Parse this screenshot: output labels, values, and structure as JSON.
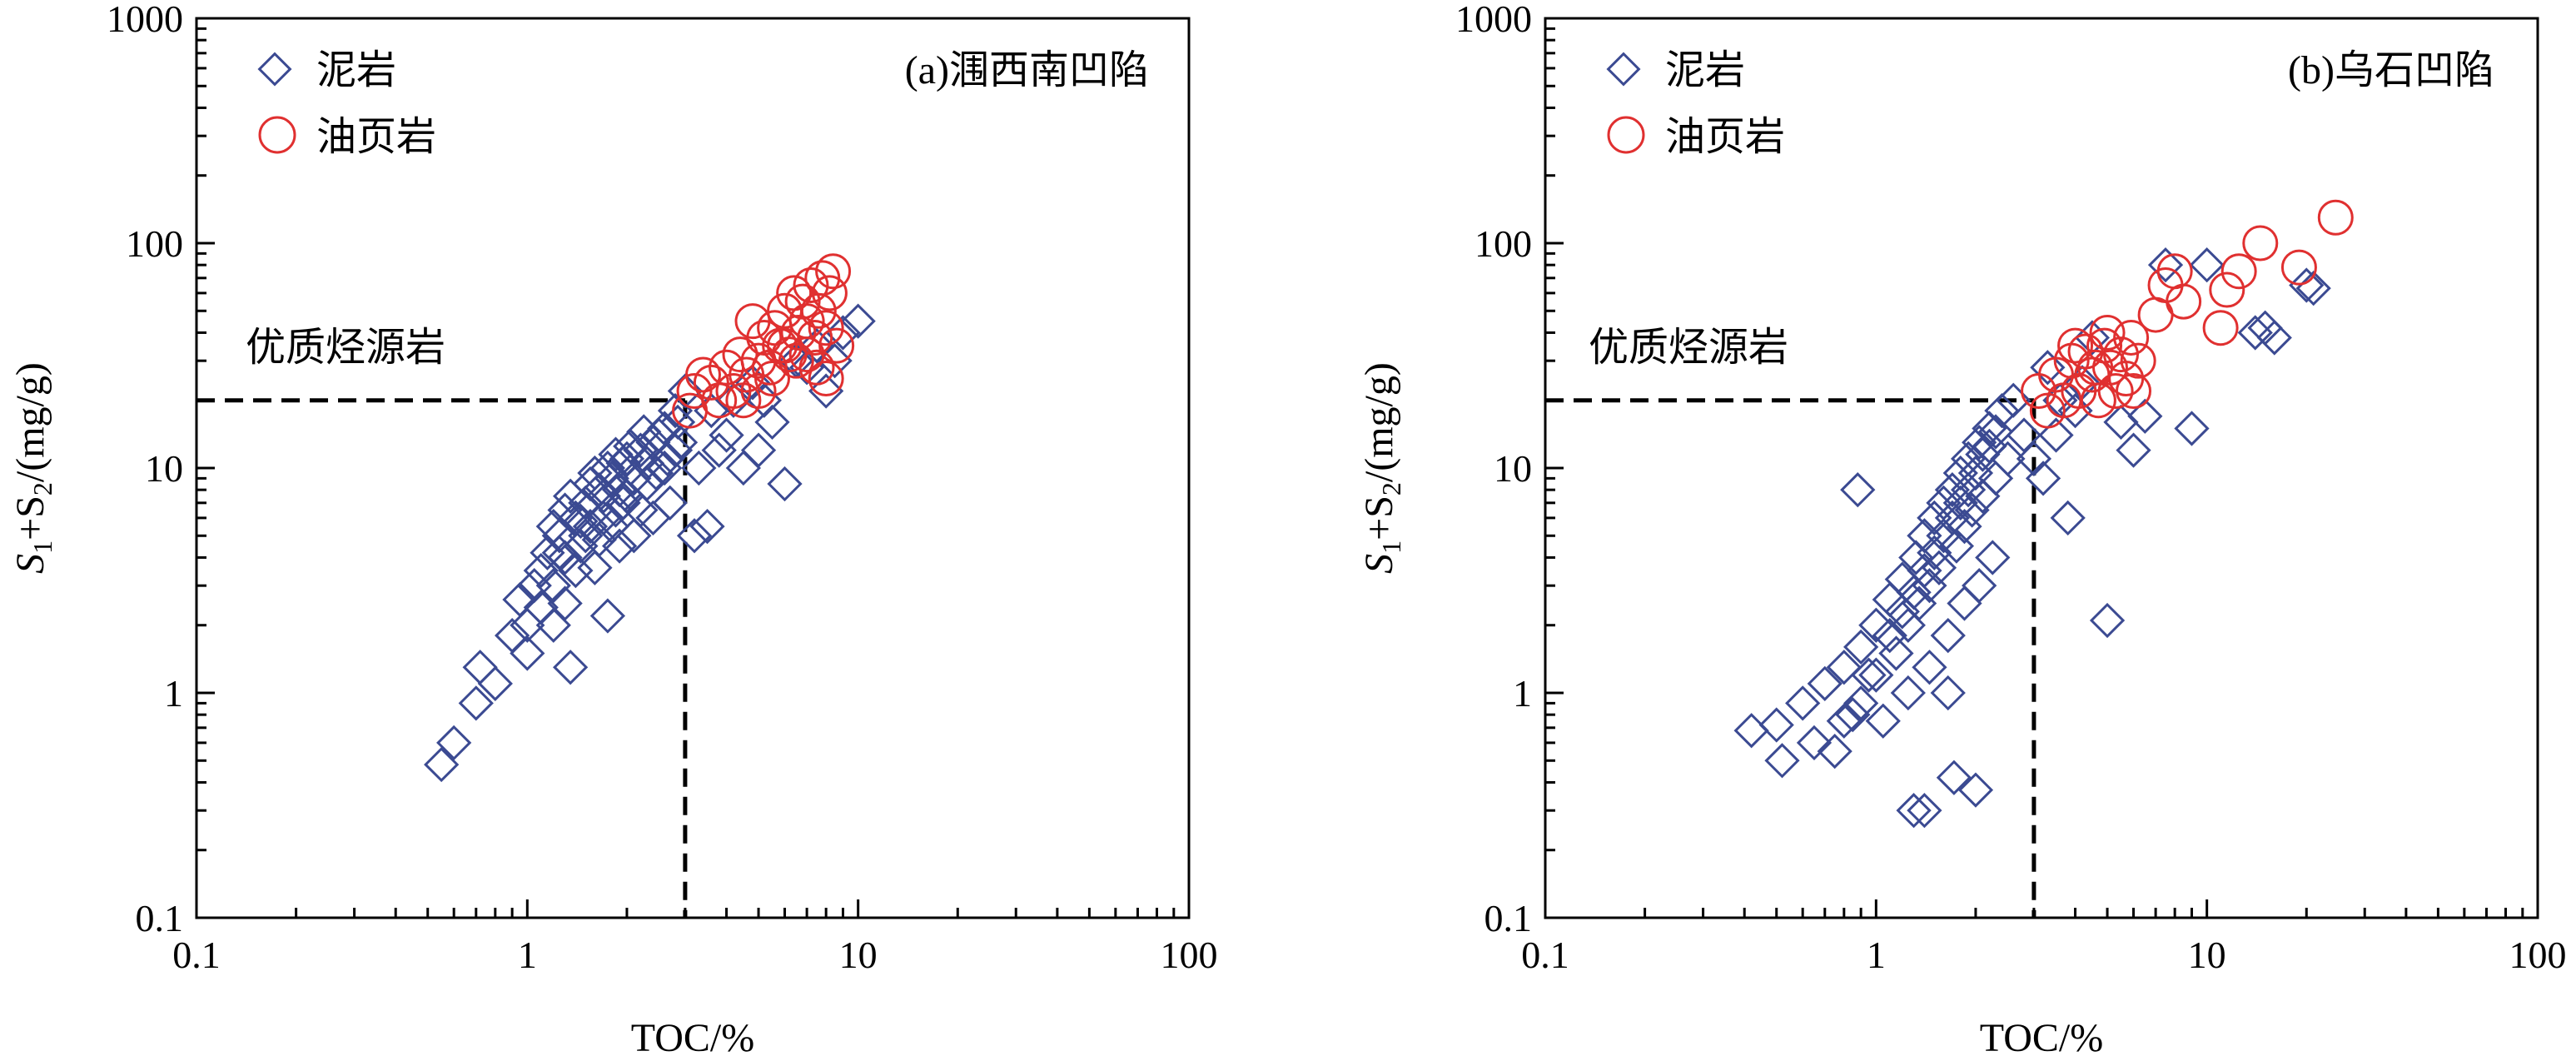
{
  "chart_data": [
    {
      "type": "scatter",
      "panel_label": "(a)涠西南凹陷",
      "xlabel": "TOC/%",
      "ylabel_parts": [
        "S",
        "1",
        "+S",
        "2",
        "/(mg/g)"
      ],
      "x_scale": "log",
      "y_scale": "log",
      "xlim": [
        0.1,
        100
      ],
      "ylim": [
        0.1,
        1000
      ],
      "x_ticks": [
        "0.1",
        "1",
        "10",
        "100"
      ],
      "y_ticks": [
        "0.1",
        "1",
        "10",
        "100",
        "1000"
      ],
      "grid": false,
      "legend_position": "top-left",
      "annotation": "优质烃源岩",
      "threshold": {
        "x": 3,
        "y": 20
      },
      "series": [
        {
          "name": "泥岩",
          "marker": "diamond",
          "color": "#3b4a92",
          "points": [
            [
              0.55,
              0.48
            ],
            [
              0.6,
              0.6
            ],
            [
              0.7,
              0.9
            ],
            [
              0.72,
              1.3
            ],
            [
              0.8,
              1.1
            ],
            [
              0.9,
              1.8
            ],
            [
              0.95,
              2.6
            ],
            [
              1.0,
              1.5
            ],
            [
              1.05,
              3.0
            ],
            [
              1.1,
              2.4
            ],
            [
              1.15,
              4.2
            ],
            [
              1.2,
              3.0
            ],
            [
              1.25,
              5.0
            ],
            [
              1.3,
              4.0
            ],
            [
              1.35,
              1.3
            ],
            [
              1.4,
              6.0
            ],
            [
              1.45,
              4.5
            ],
            [
              1.5,
              7.0
            ],
            [
              1.55,
              5.5
            ],
            [
              1.6,
              3.6
            ],
            [
              1.65,
              8.0
            ],
            [
              1.7,
              6.0
            ],
            [
              1.75,
              2.2
            ],
            [
              1.8,
              9.0
            ],
            [
              1.85,
              6.5
            ],
            [
              1.9,
              4.5
            ],
            [
              1.95,
              10.5
            ],
            [
              2.0,
              7.5
            ],
            [
              2.1,
              5.0
            ],
            [
              2.2,
              12.0
            ],
            [
              2.3,
              8.5
            ],
            [
              2.4,
              6.0
            ],
            [
              2.5,
              14.0
            ],
            [
              2.6,
              10.0
            ],
            [
              2.7,
              7.0
            ],
            [
              2.8,
              18.0
            ],
            [
              2.9,
              13.0
            ],
            [
              3.0,
              22.0
            ],
            [
              1.2,
              5.5
            ],
            [
              1.3,
              6.5
            ],
            [
              1.4,
              3.5
            ],
            [
              1.5,
              5.0
            ],
            [
              1.6,
              9.5
            ],
            [
              1.7,
              7.5
            ],
            [
              1.8,
              5.5
            ],
            [
              1.9,
              8.0
            ],
            [
              2.0,
              11.0
            ],
            [
              2.1,
              9.0
            ],
            [
              2.2,
              6.5
            ],
            [
              2.3,
              10.5
            ],
            [
              2.4,
              13.0
            ],
            [
              2.6,
              15.0
            ],
            [
              2.8,
              12.0
            ],
            [
              1.1,
              3.5
            ],
            [
              1.25,
              4.2
            ],
            [
              1.35,
              7.5
            ],
            [
              1.45,
              5.8
            ],
            [
              1.55,
              8.5
            ],
            [
              1.65,
              4.8
            ],
            [
              1.75,
              10.0
            ],
            [
              1.85,
              11.5
            ],
            [
              1.95,
              7.0
            ],
            [
              2.05,
              12.5
            ],
            [
              2.25,
              14.5
            ],
            [
              2.45,
              9.5
            ],
            [
              2.65,
              11.0
            ],
            [
              2.85,
              16.0
            ],
            [
              1.3,
              2.5
            ],
            [
              1.2,
              2.0
            ],
            [
              1.0,
              2.0
            ],
            [
              3.2,
              5.0
            ],
            [
              3.5,
              5.5
            ],
            [
              3.3,
              10.0
            ],
            [
              3.8,
              12.0
            ],
            [
              4.0,
              14.0
            ],
            [
              4.5,
              10.0
            ],
            [
              5.0,
              12.0
            ],
            [
              5.5,
              16.0
            ],
            [
              6.0,
              8.5
            ],
            [
              6.5,
              30.0
            ],
            [
              7.0,
              28.0
            ],
            [
              7.5,
              35.0
            ],
            [
              8.0,
              22.0
            ],
            [
              8.5,
              30.0
            ],
            [
              9.0,
              40.0
            ],
            [
              10.0,
              45.0
            ],
            [
              3.6,
              18.0
            ],
            [
              4.2,
              20.0
            ],
            [
              4.8,
              24.0
            ],
            [
              5.2,
              20.0
            ]
          ]
        },
        {
          "name": "油页岩",
          "marker": "circle",
          "color": "#e03030",
          "points": [
            [
              3.1,
              18.0
            ],
            [
              3.2,
              22.0
            ],
            [
              3.4,
              26.0
            ],
            [
              3.6,
              24.0
            ],
            [
              3.8,
              20.0
            ],
            [
              4.0,
              28.0
            ],
            [
              4.2,
              22.0
            ],
            [
              4.4,
              32.0
            ],
            [
              4.6,
              26.0
            ],
            [
              4.8,
              45.0
            ],
            [
              5.0,
              30.0
            ],
            [
              5.2,
              38.0
            ],
            [
              5.4,
              28.0
            ],
            [
              5.6,
              42.0
            ],
            [
              5.8,
              35.0
            ],
            [
              6.0,
              50.0
            ],
            [
              6.2,
              32.0
            ],
            [
              6.4,
              60.0
            ],
            [
              6.6,
              40.0
            ],
            [
              6.8,
              55.0
            ],
            [
              7.0,
              45.0
            ],
            [
              7.2,
              65.0
            ],
            [
              7.4,
              38.0
            ],
            [
              7.6,
              50.0
            ],
            [
              7.8,
              70.0
            ],
            [
              8.0,
              42.0
            ],
            [
              8.2,
              60.0
            ],
            [
              8.4,
              75.0
            ],
            [
              8.6,
              35.0
            ],
            [
              5.5,
              25.0
            ],
            [
              6.5,
              30.0
            ],
            [
              7.5,
              28.0
            ],
            [
              4.5,
              20.0
            ],
            [
              5.0,
              22.0
            ],
            [
              6.0,
              35.0
            ],
            [
              7.0,
              32.0
            ],
            [
              8.0,
              25.0
            ]
          ]
        }
      ]
    },
    {
      "type": "scatter",
      "panel_label": "(b)乌石凹陷",
      "xlabel": "TOC/%",
      "ylabel_parts": [
        "S",
        "1",
        "+S",
        "2",
        "/(mg/g)"
      ],
      "x_scale": "log",
      "y_scale": "log",
      "xlim": [
        0.1,
        100
      ],
      "ylim": [
        0.1,
        1000
      ],
      "x_ticks": [
        "0.1",
        "1",
        "10",
        "100"
      ],
      "y_ticks": [
        "0.1",
        "1",
        "10",
        "100",
        "1000"
      ],
      "grid": false,
      "legend_position": "top-left",
      "annotation": "优质烃源岩",
      "threshold": {
        "x": 3,
        "y": 20
      },
      "series": [
        {
          "name": "泥岩",
          "marker": "diamond",
          "color": "#3b4a92",
          "points": [
            [
              0.42,
              0.68
            ],
            [
              0.5,
              0.72
            ],
            [
              0.52,
              0.5
            ],
            [
              0.6,
              0.9
            ],
            [
              0.65,
              0.6
            ],
            [
              0.7,
              1.1
            ],
            [
              0.75,
              0.55
            ],
            [
              0.8,
              1.3
            ],
            [
              0.85,
              0.8
            ],
            [
              0.9,
              1.6
            ],
            [
              0.88,
              8.0
            ],
            [
              0.95,
              1.2
            ],
            [
              1.0,
              2.0
            ],
            [
              1.05,
              0.75
            ],
            [
              1.1,
              2.6
            ],
            [
              1.15,
              1.5
            ],
            [
              1.2,
              3.2
            ],
            [
              1.25,
              2.0
            ],
            [
              1.3,
              0.3
            ],
            [
              1.32,
              4.0
            ],
            [
              1.35,
              2.5
            ],
            [
              1.4,
              5.0
            ],
            [
              1.45,
              3.0
            ],
            [
              1.5,
              6.0
            ],
            [
              1.55,
              3.6
            ],
            [
              1.6,
              7.0
            ],
            [
              1.65,
              1.0
            ],
            [
              1.7,
              8.0
            ],
            [
              1.72,
              0.42
            ],
            [
              1.75,
              4.5
            ],
            [
              1.8,
              9.5
            ],
            [
              1.85,
              5.5
            ],
            [
              1.9,
              11.0
            ],
            [
              1.95,
              6.5
            ],
            [
              2.0,
              0.37
            ],
            [
              2.05,
              13.0
            ],
            [
              2.1,
              7.5
            ],
            [
              2.2,
              15.0
            ],
            [
              2.3,
              9.0
            ],
            [
              2.4,
              18.0
            ],
            [
              2.5,
              11.0
            ],
            [
              2.6,
              20.0
            ],
            [
              2.8,
              14.0
            ],
            [
              1.0,
              1.2
            ],
            [
              1.1,
              1.8
            ],
            [
              1.2,
              2.3
            ],
            [
              1.3,
              2.8
            ],
            [
              1.4,
              3.5
            ],
            [
              1.5,
              4.2
            ],
            [
              1.6,
              5.0
            ],
            [
              1.7,
              6.0
            ],
            [
              1.8,
              7.0
            ],
            [
              1.9,
              8.0
            ],
            [
              2.0,
              9.5
            ],
            [
              2.1,
              11.5
            ],
            [
              2.2,
              12.5
            ],
            [
              2.3,
              14.5
            ],
            [
              1.25,
              1.0
            ],
            [
              1.45,
              1.3
            ],
            [
              1.65,
              1.8
            ],
            [
              1.85,
              2.5
            ],
            [
              2.05,
              3.0
            ],
            [
              2.25,
              4.0
            ],
            [
              0.9,
              0.9
            ],
            [
              0.8,
              0.75
            ],
            [
              1.4,
              0.3
            ],
            [
              3.0,
              11.0
            ],
            [
              3.2,
              9.0
            ],
            [
              3.5,
              14.0
            ],
            [
              3.8,
              6.0
            ],
            [
              4.0,
              18.0
            ],
            [
              4.5,
              38.0
            ],
            [
              5.0,
              2.1
            ],
            [
              5.5,
              16.0
            ],
            [
              6.0,
              12.0
            ],
            [
              6.5,
              17.0
            ],
            [
              7.5,
              80.0
            ],
            [
              9.0,
              15.0
            ],
            [
              10.0,
              80.0
            ],
            [
              14.0,
              40.0
            ],
            [
              15.0,
              42.0
            ],
            [
              16.0,
              38.0
            ],
            [
              20.0,
              65.0
            ],
            [
              21.0,
              63.0
            ],
            [
              3.3,
              28.0
            ],
            [
              3.6,
              20.0
            ],
            [
              4.2,
              24.0
            ]
          ]
        },
        {
          "name": "油页岩",
          "marker": "circle",
          "color": "#e03030",
          "points": [
            [
              3.1,
              22.0
            ],
            [
              3.3,
              18.0
            ],
            [
              3.5,
              26.0
            ],
            [
              3.7,
              20.0
            ],
            [
              3.9,
              30.0
            ],
            [
              4.1,
              22.0
            ],
            [
              4.3,
              33.0
            ],
            [
              4.5,
              26.0
            ],
            [
              4.7,
              20.0
            ],
            [
              4.9,
              35.0
            ],
            [
              5.1,
              28.0
            ],
            [
              5.3,
              22.0
            ],
            [
              5.5,
              32.0
            ],
            [
              5.7,
              25.0
            ],
            [
              5.9,
              38.0
            ],
            [
              6.2,
              30.0
            ],
            [
              7.0,
              48.0
            ],
            [
              7.5,
              65.0
            ],
            [
              8.0,
              75.0
            ],
            [
              8.5,
              55.0
            ],
            [
              11.0,
              42.0
            ],
            [
              11.5,
              62.0
            ],
            [
              12.5,
              75.0
            ],
            [
              14.5,
              100.0
            ],
            [
              19.0,
              78.0
            ],
            [
              24.5,
              130.0
            ],
            [
              4.0,
              35.0
            ],
            [
              5.0,
              40.0
            ],
            [
              6.0,
              22.0
            ],
            [
              4.6,
              28.0
            ]
          ]
        }
      ]
    }
  ]
}
